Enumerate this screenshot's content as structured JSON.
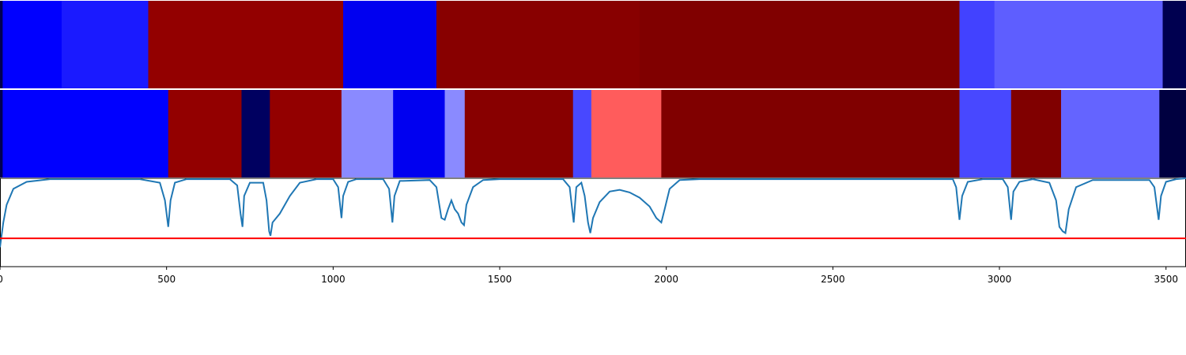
{
  "chart_data": {
    "type": "heatmap",
    "title": "",
    "xlabel": "",
    "ylabel": "",
    "xlim": [
      0,
      3560
    ],
    "x_ticks": [
      "0",
      "500",
      "1000",
      "1500",
      "2000",
      "2500",
      "3000",
      "3500"
    ],
    "x_tick_values": [
      0,
      500,
      1000,
      1500,
      2000,
      2500,
      3000,
      3500
    ],
    "segment_rows": [
      {
        "segments": [
          {
            "start": 0,
            "end": 8,
            "color": "#000050"
          },
          {
            "start": 8,
            "end": 185,
            "color": "#0000ff"
          },
          {
            "start": 185,
            "end": 445,
            "color": "#1a1aff"
          },
          {
            "start": 445,
            "end": 1030,
            "color": "#930000"
          },
          {
            "start": 1030,
            "end": 1310,
            "color": "#0000f0"
          },
          {
            "start": 1310,
            "end": 1920,
            "color": "#880000"
          },
          {
            "start": 1920,
            "end": 2880,
            "color": "#800000"
          },
          {
            "start": 2880,
            "end": 2985,
            "color": "#4242ff"
          },
          {
            "start": 2985,
            "end": 3490,
            "color": "#5e5eff"
          },
          {
            "start": 3490,
            "end": 3560,
            "color": "#000050"
          }
        ]
      },
      {
        "segments": [
          {
            "start": 0,
            "end": 8,
            "color": "#000050"
          },
          {
            "start": 8,
            "end": 505,
            "color": "#0000ff"
          },
          {
            "start": 505,
            "end": 725,
            "color": "#930000"
          },
          {
            "start": 725,
            "end": 810,
            "color": "#000060"
          },
          {
            "start": 810,
            "end": 1025,
            "color": "#930000"
          },
          {
            "start": 1025,
            "end": 1180,
            "color": "#8a8aff"
          },
          {
            "start": 1180,
            "end": 1335,
            "color": "#0000f0"
          },
          {
            "start": 1335,
            "end": 1395,
            "color": "#8a8aff"
          },
          {
            "start": 1395,
            "end": 1720,
            "color": "#880000"
          },
          {
            "start": 1720,
            "end": 1775,
            "color": "#4848ff"
          },
          {
            "start": 1775,
            "end": 1985,
            "color": "#ff5c5c"
          },
          {
            "start": 1985,
            "end": 2880,
            "color": "#800000"
          },
          {
            "start": 2880,
            "end": 3035,
            "color": "#4848ff"
          },
          {
            "start": 3035,
            "end": 3185,
            "color": "#800000"
          },
          {
            "start": 3185,
            "end": 3480,
            "color": "#6464ff"
          },
          {
            "start": 3480,
            "end": 3560,
            "color": "#000040"
          }
        ]
      }
    ],
    "line_series": {
      "color": "#1f77b4",
      "ylim": [
        0,
        1
      ],
      "points": [
        [
          0,
          0.78
        ],
        [
          10,
          0.5
        ],
        [
          20,
          0.3
        ],
        [
          40,
          0.12
        ],
        [
          80,
          0.04
        ],
        [
          150,
          0.01
        ],
        [
          420,
          0.01
        ],
        [
          480,
          0.05
        ],
        [
          495,
          0.25
        ],
        [
          505,
          0.55
        ],
        [
          512,
          0.25
        ],
        [
          525,
          0.05
        ],
        [
          560,
          0.01
        ],
        [
          690,
          0.01
        ],
        [
          712,
          0.08
        ],
        [
          722,
          0.4
        ],
        [
          728,
          0.55
        ],
        [
          733,
          0.2
        ],
        [
          750,
          0.05
        ],
        [
          790,
          0.05
        ],
        [
          800,
          0.25
        ],
        [
          808,
          0.6
        ],
        [
          812,
          0.65
        ],
        [
          818,
          0.5
        ],
        [
          840,
          0.4
        ],
        [
          870,
          0.2
        ],
        [
          900,
          0.05
        ],
        [
          950,
          0.01
        ],
        [
          1000,
          0.01
        ],
        [
          1015,
          0.1
        ],
        [
          1025,
          0.45
        ],
        [
          1030,
          0.2
        ],
        [
          1045,
          0.04
        ],
        [
          1070,
          0.01
        ],
        [
          1150,
          0.01
        ],
        [
          1168,
          0.12
        ],
        [
          1178,
          0.5
        ],
        [
          1184,
          0.2
        ],
        [
          1200,
          0.03
        ],
        [
          1290,
          0.02
        ],
        [
          1310,
          0.1
        ],
        [
          1325,
          0.45
        ],
        [
          1335,
          0.47
        ],
        [
          1345,
          0.35
        ],
        [
          1355,
          0.25
        ],
        [
          1365,
          0.35
        ],
        [
          1375,
          0.4
        ],
        [
          1385,
          0.5
        ],
        [
          1393,
          0.53
        ],
        [
          1400,
          0.3
        ],
        [
          1420,
          0.1
        ],
        [
          1450,
          0.02
        ],
        [
          1500,
          0.01
        ],
        [
          1690,
          0.01
        ],
        [
          1710,
          0.1
        ],
        [
          1722,
          0.5
        ],
        [
          1730,
          0.1
        ],
        [
          1745,
          0.05
        ],
        [
          1755,
          0.2
        ],
        [
          1765,
          0.5
        ],
        [
          1772,
          0.62
        ],
        [
          1780,
          0.45
        ],
        [
          1800,
          0.27
        ],
        [
          1830,
          0.15
        ],
        [
          1860,
          0.13
        ],
        [
          1890,
          0.16
        ],
        [
          1920,
          0.22
        ],
        [
          1950,
          0.32
        ],
        [
          1970,
          0.45
        ],
        [
          1985,
          0.5
        ],
        [
          1995,
          0.35
        ],
        [
          2010,
          0.12
        ],
        [
          2040,
          0.02
        ],
        [
          2100,
          0.01
        ],
        [
          2860,
          0.01
        ],
        [
          2870,
          0.1
        ],
        [
          2880,
          0.47
        ],
        [
          2888,
          0.2
        ],
        [
          2905,
          0.04
        ],
        [
          2950,
          0.01
        ],
        [
          3010,
          0.01
        ],
        [
          3025,
          0.1
        ],
        [
          3035,
          0.47
        ],
        [
          3042,
          0.15
        ],
        [
          3060,
          0.04
        ],
        [
          3100,
          0.01
        ],
        [
          3150,
          0.05
        ],
        [
          3170,
          0.25
        ],
        [
          3180,
          0.55
        ],
        [
          3190,
          0.6
        ],
        [
          3198,
          0.62
        ],
        [
          3208,
          0.35
        ],
        [
          3230,
          0.1
        ],
        [
          3280,
          0.02
        ],
        [
          3450,
          0.02
        ],
        [
          3465,
          0.1
        ],
        [
          3478,
          0.47
        ],
        [
          3485,
          0.2
        ],
        [
          3500,
          0.04
        ],
        [
          3530,
          0.01
        ],
        [
          3560,
          0.0
        ]
      ]
    },
    "threshold_line": {
      "y": 0.68,
      "color": "#ff0000"
    }
  }
}
